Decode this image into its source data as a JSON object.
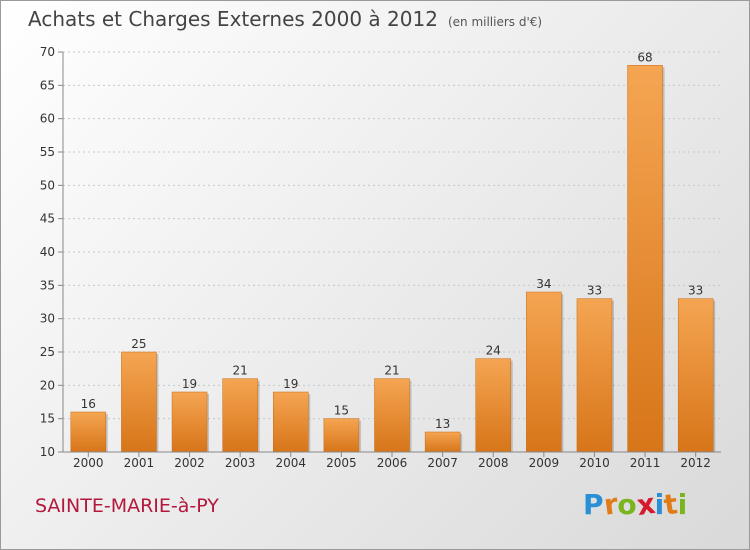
{
  "header": {
    "title": "Achats et Charges Externes 2000 à 2012",
    "subtitle": "(en milliers d'€)"
  },
  "footer": {
    "commune": "SAINTE-MARIE-à-PY",
    "logo_letters": [
      "P",
      "r",
      "o",
      "x",
      "i",
      "t",
      "i"
    ],
    "logo_colors": [
      "#2a8fd6",
      "#e07b1a",
      "#7ab51d",
      "#d6192c",
      "#2a8fd6",
      "#e07b1a",
      "#7ab51d"
    ]
  },
  "colors": {
    "bar_top": "#f5a552",
    "bar_bottom": "#d77519",
    "axis": "#888888",
    "label": "#333333"
  },
  "chart_data": {
    "type": "bar",
    "title": "Achats et Charges Externes 2000 à 2012",
    "subtitle": "(en milliers d'€)",
    "categories": [
      "2000",
      "2001",
      "2002",
      "2003",
      "2004",
      "2005",
      "2006",
      "2007",
      "2008",
      "2009",
      "2010",
      "2011",
      "2012"
    ],
    "values": [
      16,
      25,
      19,
      21,
      19,
      15,
      21,
      13,
      24,
      34,
      33,
      68,
      33
    ],
    "ylim": [
      10,
      70
    ],
    "yticks": [
      10,
      15,
      20,
      25,
      30,
      35,
      40,
      45,
      50,
      55,
      60,
      65,
      70
    ],
    "grid": true,
    "legend": "none"
  }
}
